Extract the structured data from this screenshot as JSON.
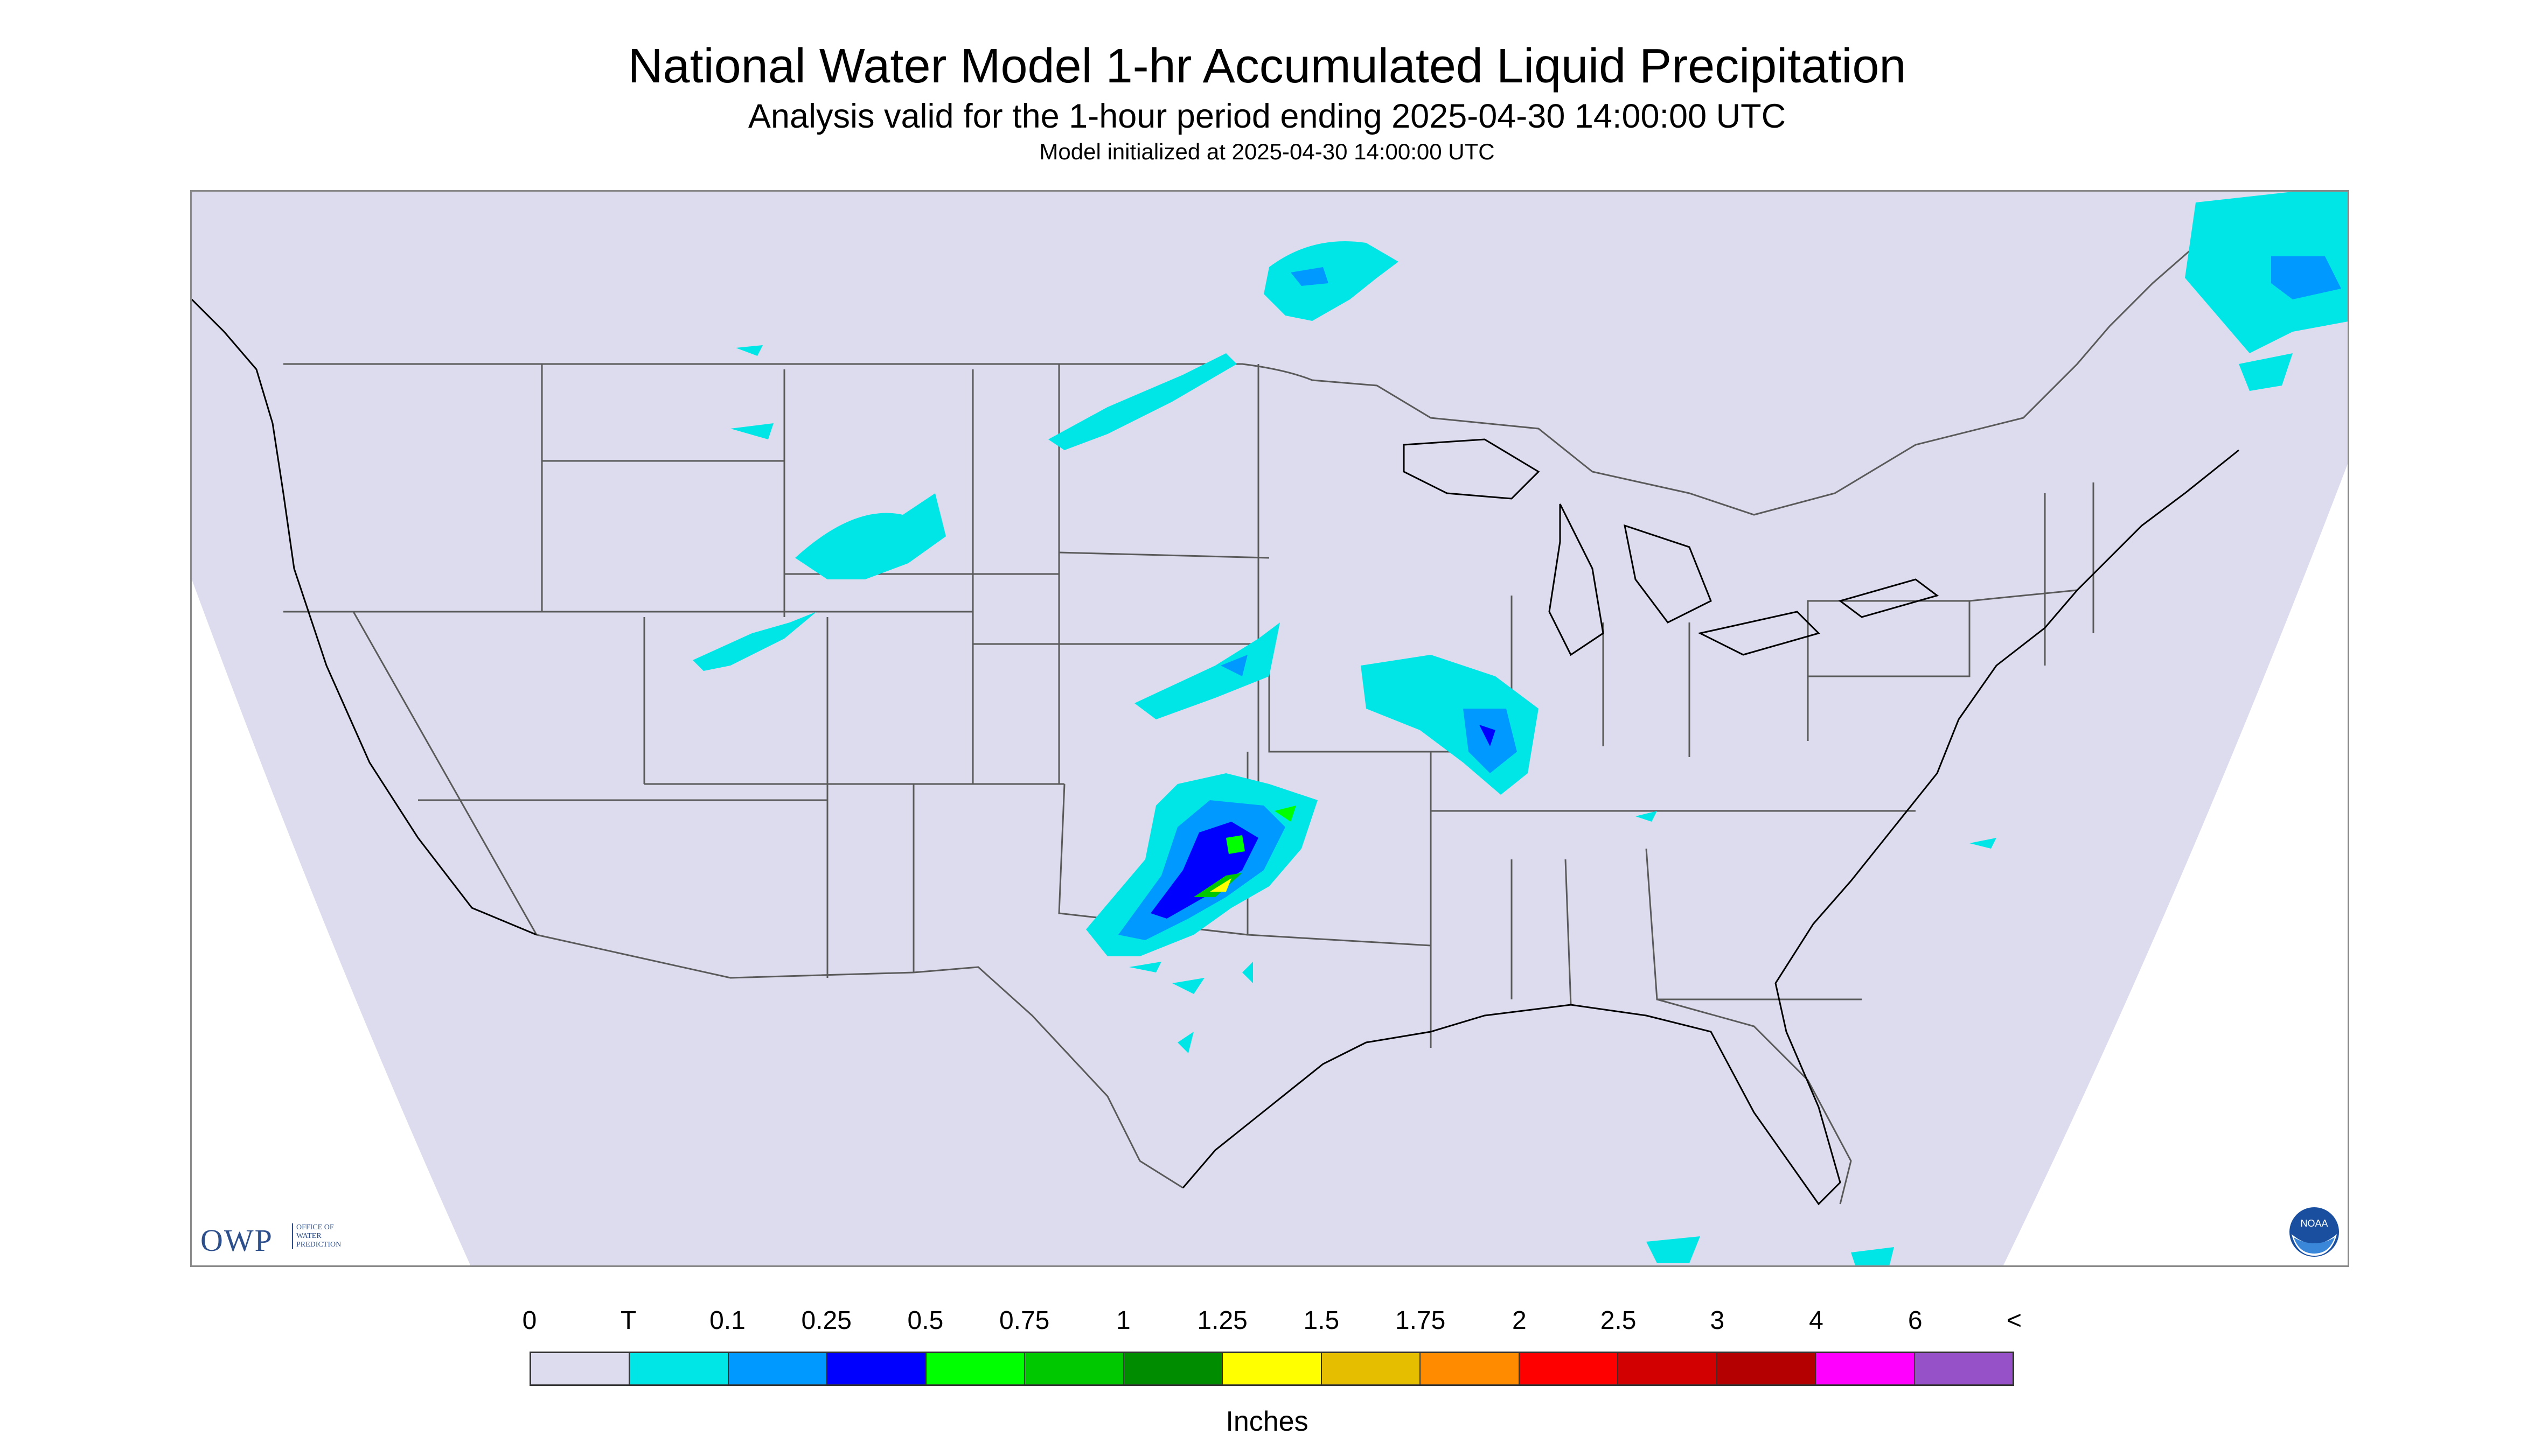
{
  "header": {
    "title": "National Water Model 1-hr Accumulated Liquid Precipitation",
    "subtitle": "Analysis valid for the 1-hour period ending 2025-04-30 14:00:00 UTC",
    "init_line": "Model initialized at 2025-04-30 14:00:00 UTC"
  },
  "logos": {
    "owp_mark": "OWP",
    "owp_text": "OFFICE OF WATER PREDICTION",
    "noaa_text": "NOAA"
  },
  "colors": {
    "background_domain": "#dcdcee",
    "outside_domain": "#ffffff",
    "boundary_lines": "#5a5a5a",
    "coastline": "#000000"
  },
  "legend": {
    "tick_labels": [
      "0",
      "T",
      "0.1",
      "0.25",
      "0.5",
      "0.75",
      "1",
      "1.25",
      "1.5",
      "1.75",
      "2",
      "2.5",
      "3",
      "4",
      "6",
      "<"
    ],
    "colors": [
      "#dcdcee",
      "#00e6e6",
      "#0099ff",
      "#0000ff",
      "#00ff00",
      "#00c800",
      "#008c00",
      "#ffff00",
      "#e6be00",
      "#ff8c00",
      "#ff0000",
      "#d20000",
      "#b40000",
      "#ff00ff",
      "#9650c8"
    ],
    "units": "Inches"
  },
  "map": {
    "region": "Continental United States",
    "precip_areas": [
      {
        "name": "Southern Plains (Oklahoma / North Texas)",
        "max_category": "1.5"
      },
      {
        "name": "Missouri / Illinois",
        "max_category": "0.5"
      },
      {
        "name": "Northern Minnesota",
        "max_category": "0.25"
      },
      {
        "name": "Northern New England / Quebec",
        "max_category": "0.25"
      },
      {
        "name": "Kansas / Nebraska",
        "max_category": "0.25"
      },
      {
        "name": "Wyoming / Colorado",
        "max_category": "T"
      },
      {
        "name": "North Dakota",
        "max_category": "T"
      }
    ]
  }
}
